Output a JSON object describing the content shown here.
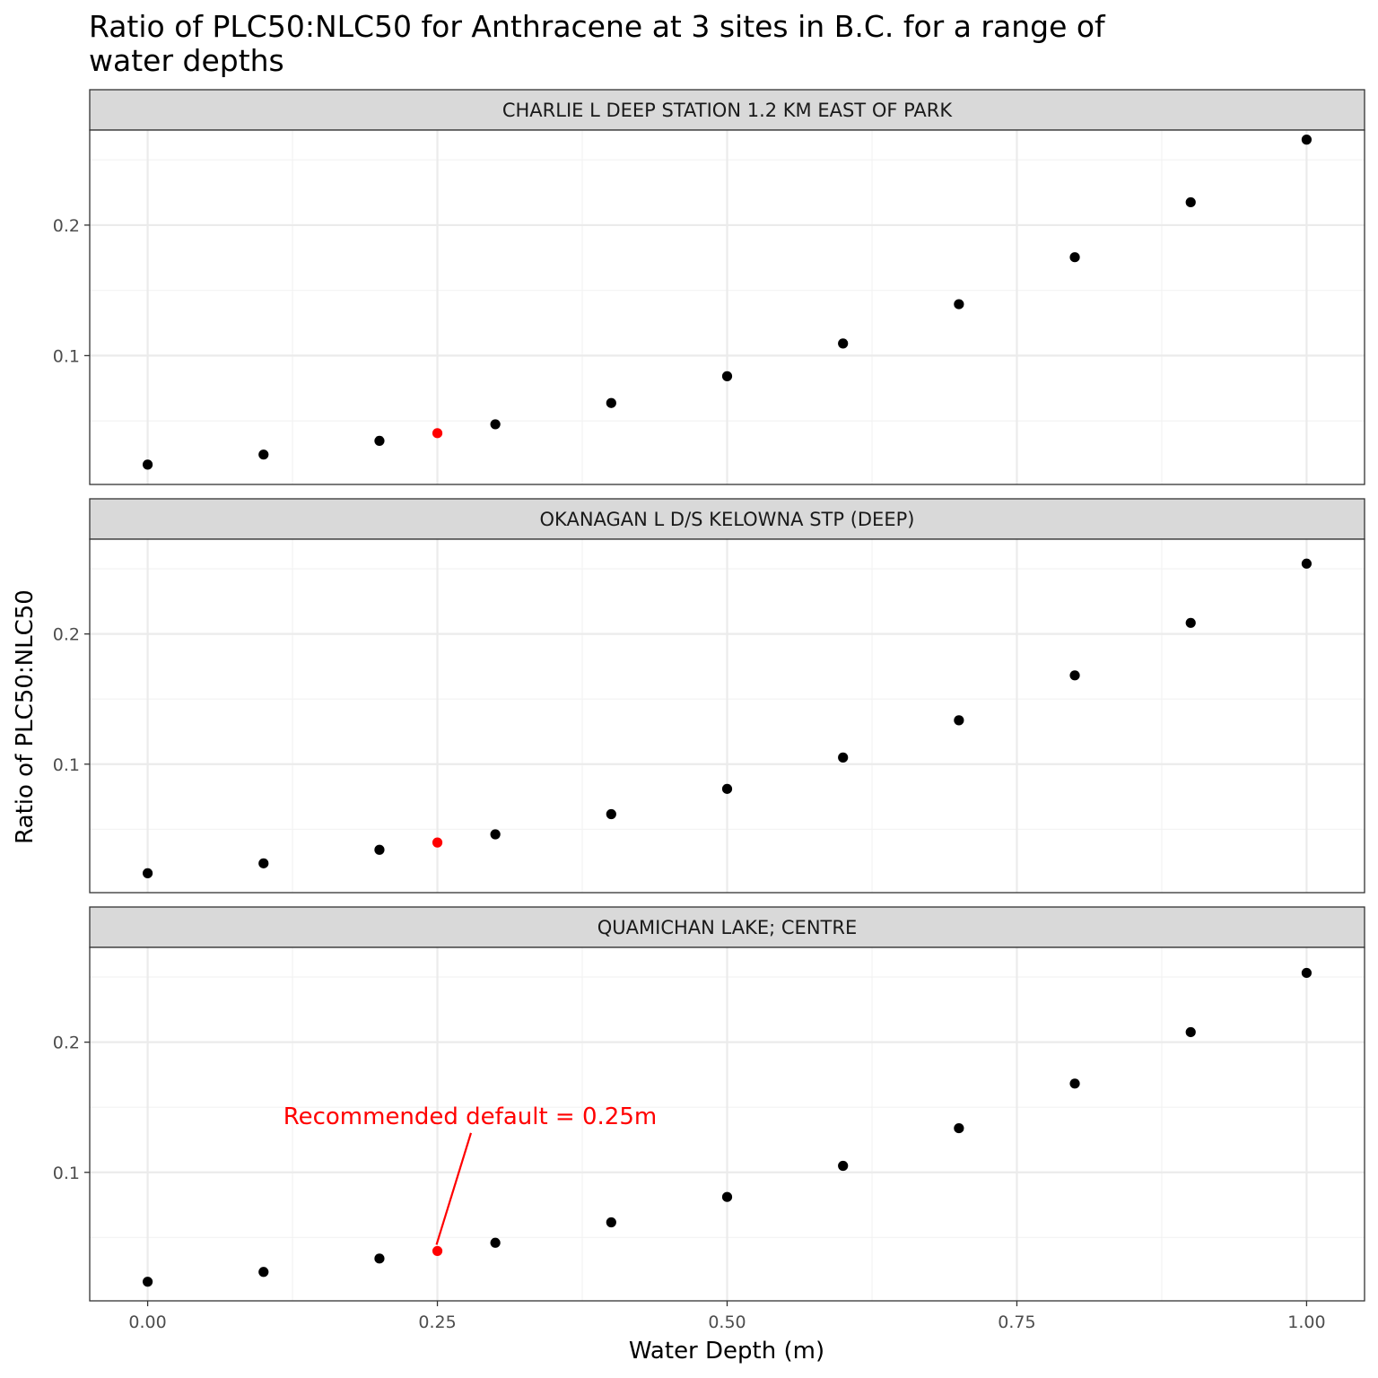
{
  "chart_data": {
    "type": "scatter",
    "title": "Ratio of PLC50:NLC50 for Anthracene at 3 sites in B.C. for a range of water depths",
    "title_lines": [
      "Ratio of PLC50:NLC50 for Anthracene at 3 sites in B.C. for a range of",
      "water depths"
    ],
    "xlabel": "Water Depth (m)",
    "ylabel": "Ratio of PLC50:NLC50",
    "xlim": [
      -0.05,
      1.05
    ],
    "ylim": [
      0.0013,
      0.2728
    ],
    "x_ticks": [
      0.0,
      0.25,
      0.5,
      0.75,
      1.0
    ],
    "x_tick_labels": [
      "0.00",
      "0.25",
      "0.50",
      "0.75",
      "1.00"
    ],
    "y_ticks": [
      0.1,
      0.2
    ],
    "y_tick_labels": [
      "0.1",
      "0.2"
    ],
    "grid": true,
    "theme": "bw",
    "point_color": "#000000",
    "highlight_color": "#ff0000",
    "highlight_x": 0.25,
    "x": [
      0.0,
      0.1,
      0.2,
      0.25,
      0.3,
      0.4,
      0.5,
      0.6,
      0.7,
      0.8,
      0.9,
      1.0
    ],
    "panels": [
      {
        "name": "CHARLIE L DEEP STATION 1.2 KM EAST OF PARK",
        "values": [
          0.0165,
          0.0242,
          0.0347,
          0.0406,
          0.0474,
          0.0637,
          0.0842,
          0.1093,
          0.1394,
          0.1754,
          0.2175,
          0.2655
        ]
      },
      {
        "name": "OKANAGAN L D/S KELOWNA STP (DEEP)",
        "values": [
          0.0162,
          0.0238,
          0.0342,
          0.0398,
          0.0461,
          0.0616,
          0.081,
          0.1051,
          0.1337,
          0.1682,
          0.2085,
          0.254
        ]
      },
      {
        "name": "QUAMICHAN LAKE; CENTRE",
        "values": [
          0.016,
          0.0235,
          0.0338,
          0.0396,
          0.0459,
          0.0616,
          0.0811,
          0.105,
          0.1339,
          0.1682,
          0.2077,
          0.2532
        ]
      }
    ],
    "annotation": {
      "text": "Recommended default = 0.25m",
      "panel": 2,
      "x": 0.25,
      "y": 0.0396,
      "label_x": 0.2,
      "label_y": 0.133,
      "color": "#ff0000"
    }
  }
}
